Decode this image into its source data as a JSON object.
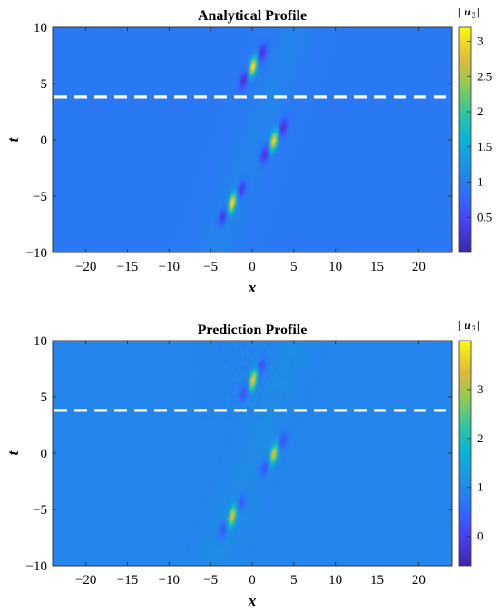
{
  "chart_data": [
    {
      "type": "heatmap",
      "title": "Analytical Profile",
      "xlabel": "x",
      "ylabel": "t",
      "xlim": [
        -24,
        24
      ],
      "ylim": [
        -10,
        10
      ],
      "xticks": [
        -20,
        -15,
        -10,
        -5,
        0,
        5,
        10,
        15,
        20
      ],
      "yticks": [
        -10,
        -5,
        0,
        5,
        10
      ],
      "background_value": 0.95,
      "colorbar": {
        "label": "|u3|",
        "range": [
          0,
          3.2
        ],
        "ticks": [
          0.5,
          1,
          1.5,
          2,
          2.5,
          3
        ]
      },
      "dashed_line_t": 3.8,
      "peaks": [
        {
          "x": 0.1,
          "t": 6.5,
          "amplitude": 3.1
        },
        {
          "x": 2.6,
          "t": -0.1,
          "amplitude": 3.0
        },
        {
          "x": -2.4,
          "t": -5.6,
          "amplitude": 3.0
        }
      ],
      "noise": false
    },
    {
      "type": "heatmap",
      "title": "Prediction Profile",
      "xlabel": "x",
      "ylabel": "t",
      "xlim": [
        -24,
        24
      ],
      "ylim": [
        -10,
        10
      ],
      "xticks": [
        -20,
        -15,
        -10,
        -5,
        0,
        5,
        10,
        15,
        20
      ],
      "yticks": [
        -10,
        -5,
        0,
        5,
        10
      ],
      "background_value": 0.95,
      "colorbar": {
        "label": "|u3|",
        "range": [
          -0.6,
          4.0
        ],
        "ticks": [
          0,
          1,
          2,
          3
        ]
      },
      "dashed_line_t": 3.8,
      "peaks": [
        {
          "x": 0.1,
          "t": 6.5,
          "amplitude": 3.6
        },
        {
          "x": 2.6,
          "t": -0.1,
          "amplitude": 3.4
        },
        {
          "x": -2.4,
          "t": -5.6,
          "amplitude": 3.4
        }
      ],
      "noise": true
    }
  ]
}
